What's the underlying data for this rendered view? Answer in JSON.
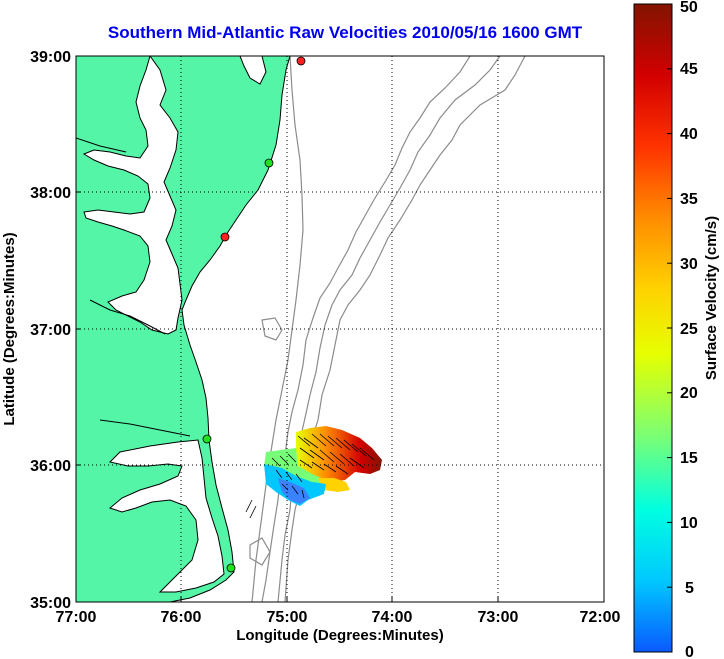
{
  "title": "Southern Mid-Atlantic Raw Velocities 2010/05/16 1600 GMT",
  "colors": {
    "title": "#0000ee",
    "land": "#55f5a8",
    "coast": "#000000",
    "bathymetry": "#8c8c8c",
    "site_red": "#ff2020",
    "site_green": "#20e020",
    "colormap": [
      "#0a5aff",
      "#00c8ff",
      "#00ffe0",
      "#78ff78",
      "#e6ff00",
      "#ffd200",
      "#ff8c00",
      "#ff3200",
      "#d20000",
      "#821400"
    ]
  },
  "chart_data": {
    "type": "map",
    "title": "Southern Mid-Atlantic Raw Velocities 2010/05/16 1600 GMT",
    "xlabel": "Longitude (Degrees:Minutes)",
    "ylabel": "Latitude (Degrees:Minutes)",
    "x_ticks": [
      "77:00",
      "76:00",
      "75:00",
      "74:00",
      "73:00",
      "72:00"
    ],
    "y_ticks": [
      "39:00",
      "38:00",
      "37:00",
      "36:00",
      "35:00"
    ],
    "xlim": [
      -77,
      -72
    ],
    "ylim": [
      35,
      39
    ],
    "grid": true,
    "colorbar": {
      "label": "Surface Velocity (cm/s)",
      "ticks": [
        "50",
        "45",
        "40",
        "35",
        "30",
        "25",
        "20",
        "15",
        "10",
        "5",
        "0"
      ],
      "range": [
        0,
        50
      ]
    },
    "sites": [
      {
        "lon": -74.85,
        "lat": 38.95,
        "color": "red"
      },
      {
        "lon": -75.05,
        "lat": 38.22,
        "color": "green"
      },
      {
        "lon": -75.46,
        "lat": 37.68,
        "color": "red"
      },
      {
        "lon": -75.66,
        "lat": 36.2,
        "color": "green"
      },
      {
        "lon": -75.47,
        "lat": 35.25,
        "color": "green"
      }
    ],
    "velocity_field": [
      {
        "lon_min": -75.15,
        "lon_max": -74.15,
        "lat_min": 36.04,
        "lat_max": 36.44,
        "speed": 40
      },
      {
        "lon_min": -74.7,
        "lon_max": -74.3,
        "lat_min": 35.94,
        "lat_max": 36.14,
        "speed": 33
      },
      {
        "lon_min": -75.15,
        "lon_max": -74.7,
        "lat_min": 35.94,
        "lat_max": 36.14,
        "speed": 20
      },
      {
        "lon_min": -75.15,
        "lon_max": -74.65,
        "lat_min": 35.76,
        "lat_max": 35.98,
        "speed": 9
      }
    ]
  }
}
